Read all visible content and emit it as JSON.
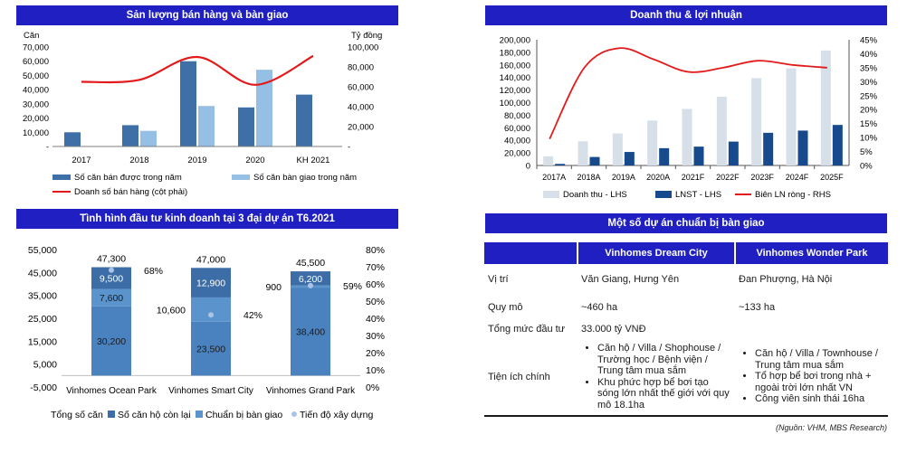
{
  "panel1": {
    "title": "Sản lượng bán hàng và bàn giao",
    "left_unit": "Căn",
    "right_unit": "Tỷ đồng"
  },
  "panel2": {
    "title": "Doanh thu & lợi nhuận"
  },
  "panel3": {
    "title": "Tình hình đầu tư kinh doanh tại 3 đại dự án T6.2021"
  },
  "panel4": {
    "title": "Một số dự án chuẩn bị bàn giao",
    "headers": [
      "",
      "Vinhomes Dream City",
      "Vinhomes Wonder Park"
    ],
    "rows": [
      {
        "label": "Vị trí",
        "a": "Văn Giang, Hưng Yên",
        "b": "Đan Phượng, Hà Nội"
      },
      {
        "label": "Quy mô",
        "a": "~460 ha",
        "b": "~133 ha"
      },
      {
        "label": "Tổng mức đầu tư",
        "a": "33.000 tỷ VNĐ",
        "b": ""
      }
    ],
    "amenities_label": "Tiện ích chính",
    "amenities_a": [
      "Căn hộ / Villa / Shophouse / Trường học / Bệnh viện / Trung tâm mua sắm",
      "Khu phức hợp bể bơi tạo sóng lớn nhất thế giới với quy mô 18.1ha"
    ],
    "amenities_b": [
      "Căn hộ / Villa / Townhouse / Trung tâm mua sắm",
      "Tổ hợp bể bơi trong nhà + ngoài trời lớn nhất VN",
      "Công viên sinh thái 16ha"
    ]
  },
  "source_note": "(Nguồn: VHM, MBS Research)",
  "colors": {
    "header": "#1f1fc2",
    "dark_bar": "#3e70a7",
    "light_bar": "#96bfe5",
    "red_line": "#e31a1c",
    "navy_bar": "#164a8c",
    "gray_bar": "#d7dfe9",
    "stack_bottom": "#4a82c0",
    "stack_mid": "#5b93cc",
    "stack_top": "#3d6da7",
    "progress_dot": "#a9c4e6"
  },
  "chart_data": [
    {
      "type": "bar",
      "id": "sales",
      "categories": [
        "2017",
        "2018",
        "2019",
        "2020",
        "KH 2021"
      ],
      "series": [
        {
          "name": "Số căn bán được trong năm",
          "values": [
            10000,
            15000,
            60000,
            27500,
            36500
          ],
          "axis": "left"
        },
        {
          "name": "Số căn bàn giao trong năm",
          "values": [
            null,
            11000,
            28500,
            54000,
            null
          ],
          "axis": "left"
        },
        {
          "name": "Doanh số bán hàng (cột phải)",
          "type": "line",
          "axis": "right",
          "values": [
            65000,
            67000,
            90000,
            62000,
            91000
          ]
        }
      ],
      "left_ticks": [
        "-",
        "10,000",
        "20,000",
        "30,000",
        "40,000",
        "50,000",
        "60,000",
        "70,000"
      ],
      "right_ticks": [
        "-",
        "20,000",
        "40,000",
        "60,000",
        "80,000",
        "100,000"
      ],
      "ylim": [
        0,
        70000
      ],
      "y2lim": [
        0,
        100000
      ]
    },
    {
      "type": "bar",
      "id": "revenue",
      "categories": [
        "2017A",
        "2018A",
        "2019A",
        "2020A",
        "2021F",
        "2022F",
        "2023F",
        "2024F",
        "2025F"
      ],
      "series": [
        {
          "name": "Doanh thu - LHS",
          "values": [
            14500,
            38500,
            51000,
            71500,
            90000,
            109500,
            139000,
            154500,
            183000
          ]
        },
        {
          "name": "LNST - LHS",
          "values": [
            2500,
            13500,
            21500,
            27500,
            30000,
            38000,
            52000,
            55500,
            64500
          ]
        },
        {
          "name": "Biên LN ròng - RHS",
          "type": "line",
          "axis": "right",
          "values": [
            9.5,
            35,
            42,
            38,
            33.5,
            35,
            37.5,
            36,
            35
          ]
        }
      ],
      "left_ticks": [
        "0",
        "20,000",
        "40,000",
        "60,000",
        "80,000",
        "100,000",
        "120,000",
        "140,000",
        "160,000",
        "180,000",
        "200,000"
      ],
      "right_ticks": [
        "0%",
        "5%",
        "10%",
        "15%",
        "20%",
        "25%",
        "30%",
        "35%",
        "40%",
        "45%"
      ],
      "ylim": [
        0,
        200000
      ],
      "y2lim": [
        0,
        45
      ]
    },
    {
      "type": "bar",
      "id": "projects",
      "stacked": true,
      "categories": [
        "Vinhomes Ocean Park",
        "Vinhomes Smart City",
        "Vinhomes Grand Park"
      ],
      "totals": [
        "47,300",
        "47,000",
        "45,500"
      ],
      "series": [
        {
          "name": "Tổng số căn",
          "values": [
            null,
            null,
            null
          ]
        },
        {
          "name": "Số căn hộ còn lại",
          "values": [
            30200,
            23500,
            38400
          ],
          "labels": [
            "30,200",
            "23,500",
            "38,400"
          ]
        },
        {
          "name": "Chuẩn bị bàn giao",
          "values": [
            7600,
            10600,
            900
          ],
          "labels": [
            "7,600",
            "10,600",
            "900"
          ]
        },
        {
          "name": "",
          "values": [
            9500,
            12900,
            6200
          ],
          "labels": [
            "9,500",
            "12,900",
            "6,200"
          ]
        },
        {
          "name": "Tiến độ xây dựng",
          "type": "scatter",
          "axis": "right",
          "values": [
            68,
            42,
            59
          ],
          "labels": [
            "68%",
            "42%",
            "59%"
          ]
        }
      ],
      "left_ticks": [
        "-5,000",
        "5,000",
        "15,000",
        "25,000",
        "35,000",
        "45,000",
        "55,000"
      ],
      "right_ticks": [
        "0%",
        "10%",
        "20%",
        "30%",
        "40%",
        "50%",
        "60%",
        "70%",
        "80%"
      ],
      "ylim": [
        -5000,
        55000
      ],
      "y2lim": [
        0,
        80
      ]
    }
  ]
}
